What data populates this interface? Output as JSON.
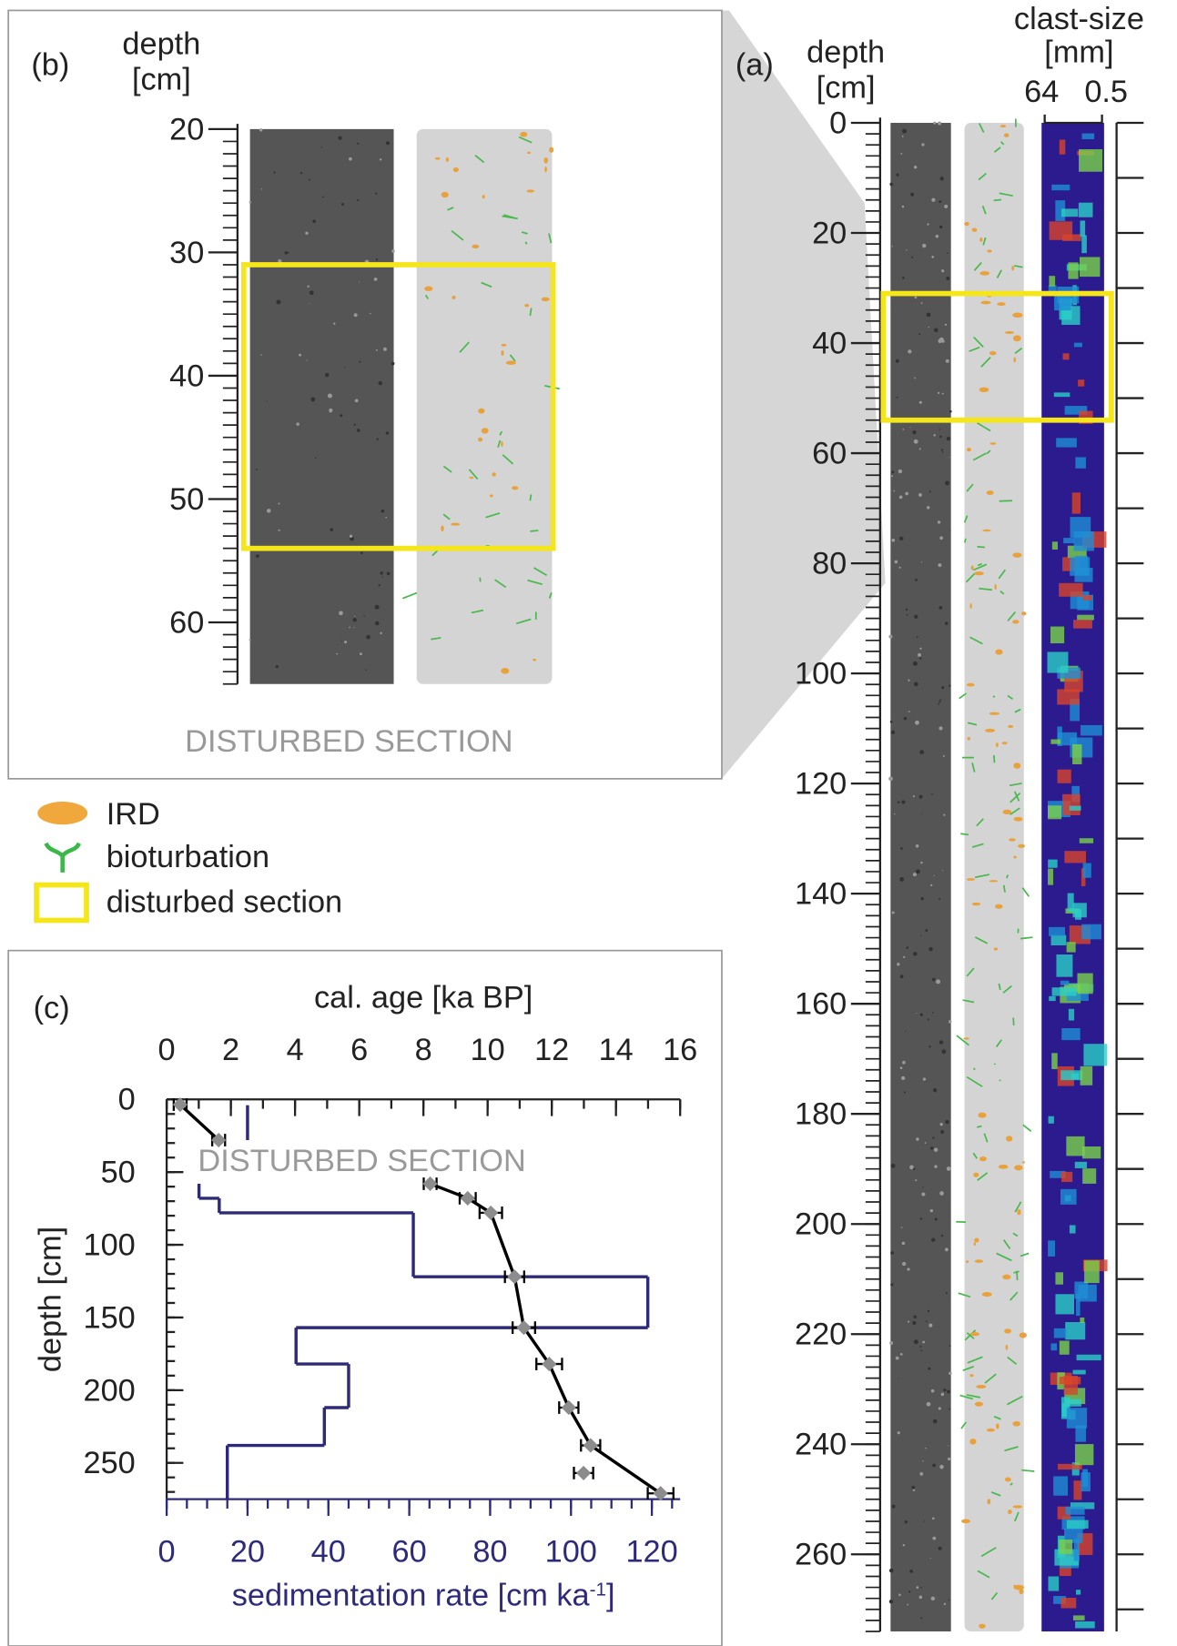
{
  "chart_data": [
    {
      "type": "core",
      "panel_label": "(b)",
      "y_label": [
        "depth",
        "[cm]"
      ],
      "ylim": [
        20,
        65
      ],
      "yticks": [
        20,
        30,
        40,
        50,
        60
      ],
      "minor_step": 1,
      "disturbed": [
        31,
        54
      ],
      "disturbed_color": "#f5e51b",
      "annotation": "DISTURBED SECTION"
    },
    {
      "type": "core",
      "panel_label": "(a)",
      "y_label": [
        "depth",
        "[cm]"
      ],
      "clast_label": [
        "clast-size",
        "[mm]"
      ],
      "clast_ticks": [
        64,
        0.5
      ],
      "ylim": [
        0,
        274
      ],
      "yticks": [
        0,
        20,
        40,
        60,
        80,
        100,
        120,
        140,
        160,
        180,
        200,
        220,
        240,
        260
      ],
      "minor_step": 2,
      "disturbed": [
        31,
        54
      ],
      "disturbed_color": "#f5e51b"
    },
    {
      "type": "age-depth",
      "panel_label": "(c)",
      "x_label": "cal. age [ka BP]",
      "xlim": [
        0,
        16
      ],
      "xticks": [
        0,
        2,
        4,
        6,
        8,
        10,
        12,
        14,
        16
      ],
      "x_minor_step": 1,
      "y_label": "depth [cm]",
      "ylim": [
        0,
        275
      ],
      "yticks": [
        0,
        50,
        100,
        150,
        200,
        250
      ],
      "y_minor_step": 10,
      "x2_label": [
        "sedimentation rate [cm ka",
        "-1",
        "]"
      ],
      "x2lim": [
        0,
        127
      ],
      "x2ticks": [
        0,
        20,
        40,
        60,
        80,
        100,
        120
      ],
      "x2_minor_step": 5,
      "annotation": "DISTURBED SECTION",
      "series": [
        {
          "color": "#000000",
          "marker_color": "#8c8c8c",
          "line": true,
          "x": [
            0.42,
            1.62,
            null,
            8.21,
            9.38,
            10.1,
            10.84,
            11.13,
            11.92,
            12.53,
            13.21,
            15.39
          ],
          "values": [
            3.6,
            28,
            null,
            58,
            68,
            78,
            122,
            157,
            182,
            212,
            238,
            271
          ],
          "xerr": [
            0.2,
            0.2,
            null,
            0.2,
            0.25,
            0.35,
            0.3,
            0.35,
            0.4,
            0.3,
            0.3,
            0.4
          ]
        },
        {
          "color": "#000000",
          "marker_color": "#8c8c8c",
          "line": false,
          "x": [
            12.99
          ],
          "values": [
            257
          ],
          "xerr": [
            0.3
          ]
        }
      ],
      "rate": {
        "color": "#2e2a7a",
        "top": [
          4,
          58,
          68,
          78,
          122,
          157,
          182,
          212,
          238
        ],
        "bottom": [
          28,
          68,
          78,
          122,
          157,
          182,
          212,
          238,
          275
        ],
        "values": [
          20,
          8,
          13,
          61,
          119,
          32,
          45,
          39,
          15
        ]
      }
    }
  ],
  "legend": [
    "IRD",
    "bioturbation",
    "disturbed section"
  ]
}
